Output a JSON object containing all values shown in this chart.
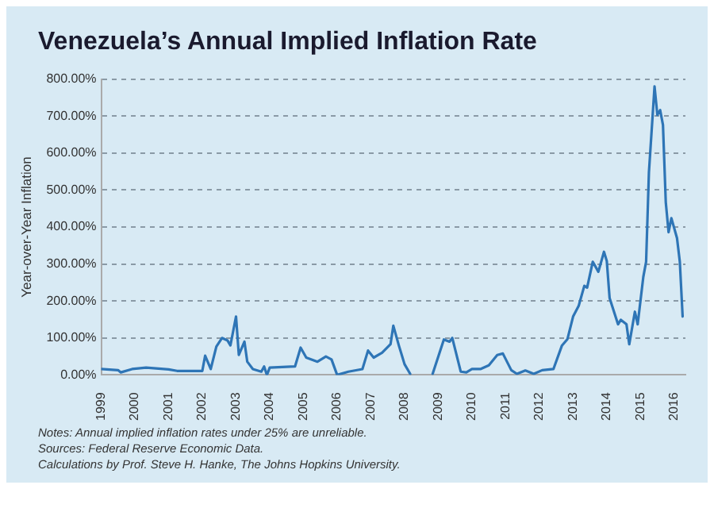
{
  "chart_data": {
    "type": "line",
    "title": "Venezuela’s Annual Implied Inflation Rate",
    "ylabel": "Year-over-Year Inflation",
    "x": [
      "1999-01",
      "1999-07",
      "1999-08",
      "1999-12",
      "2000-05",
      "2001-01",
      "2001-04",
      "2002-01",
      "2002-02",
      "2002-04",
      "2002-06",
      "2002-08",
      "2002-10",
      "2002-11",
      "2003-01",
      "2003-02",
      "2003-04",
      "2003-05",
      "2003-07",
      "2003-10",
      "2003-11",
      "2003-12",
      "2004-01",
      "2004-10",
      "2004-12",
      "2005-02",
      "2005-06",
      "2005-09",
      "2005-11",
      "2006-01",
      "2006-05",
      "2006-10",
      "2006-12",
      "2007-02",
      "2007-05",
      "2007-08",
      "2007-09",
      "2007-11",
      "2008-01",
      "2008-03",
      "2008-06",
      "2008-11",
      "2009-03",
      "2009-05",
      "2009-06",
      "2009-09",
      "2009-11",
      "2010-01",
      "2010-04",
      "2010-07",
      "2010-10",
      "2010-12",
      "2011-03",
      "2011-05",
      "2011-08",
      "2011-11",
      "2012-02",
      "2012-06",
      "2012-09",
      "2012-11",
      "2013-01",
      "2013-03",
      "2013-05",
      "2013-06",
      "2013-08",
      "2013-10",
      "2013-12",
      "2014-01",
      "2014-02",
      "2014-05",
      "2014-06",
      "2014-08",
      "2014-09",
      "2014-11",
      "2014-12",
      "2015-02",
      "2015-03",
      "2015-04",
      "2015-06",
      "2015-07",
      "2015-08",
      "2015-09",
      "2015-10",
      "2015-11",
      "2015-12",
      "2016-02",
      "2016-03",
      "2016-04"
    ],
    "series": [
      {
        "color": "#2e75b6",
        "values": [
          16,
          13,
          7,
          16,
          20,
          15,
          11,
          11,
          52,
          16,
          77,
          100,
          93,
          80,
          158,
          54,
          90,
          36,
          16,
          9,
          23,
          0,
          20,
          23,
          74,
          47,
          36,
          50,
          42,
          0,
          9,
          16,
          66,
          47,
          60,
          83,
          133,
          79,
          29,
          3,
          null,
          3,
          96,
          90,
          100,
          9,
          7,
          16,
          16,
          26,
          54,
          58,
          13,
          3,
          12,
          3,
          13,
          16,
          79,
          97,
          158,
          187,
          241,
          236,
          306,
          279,
          333,
          308,
          208,
          137,
          149,
          137,
          83,
          171,
          137,
          265,
          306,
          548,
          780,
          703,
          716,
          676,
          467,
          386,
          424,
          370,
          306,
          158
        ]
      }
    ],
    "xlim": [
      "1999-01",
      "2016-05"
    ],
    "xticks": [
      "1999",
      "2000",
      "2001",
      "2002",
      "2003",
      "2004",
      "2005",
      "2006",
      "2007",
      "2008",
      "2009",
      "2010",
      "2011",
      "2012",
      "2013",
      "2014",
      "2015",
      "2016"
    ],
    "ylim": [
      0,
      800
    ],
    "yticks": [
      {
        "value": 0,
        "label": "0.00%"
      },
      {
        "value": 100,
        "label": "100.00%"
      },
      {
        "value": 200,
        "label": "200.00%"
      },
      {
        "value": 300,
        "label": "300.00%"
      },
      {
        "value": 400,
        "label": "400.00%"
      },
      {
        "value": 500,
        "label": "500.00%"
      },
      {
        "value": 600,
        "label": "600.00%"
      },
      {
        "value": 700,
        "label": "700.00%"
      },
      {
        "value": 800,
        "label": "800.00%"
      }
    ],
    "grid": "y",
    "marker": "none",
    "line_style": "solid",
    "annotations": [
      "Notes: Annual implied inflation rates under 25% are unreliable.",
      "Sources: Federal Reserve Economic Data.",
      "Calculations by Prof. Steve H. Hanke, The Johns Hopkins University."
    ]
  }
}
